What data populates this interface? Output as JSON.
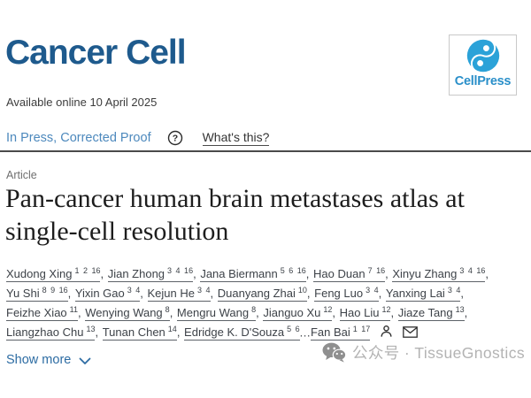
{
  "header": {
    "journal": "Cancer Cell",
    "logo_text": "CellPress"
  },
  "meta": {
    "available_online": "Available online 10 April 2025"
  },
  "status": {
    "label": "In Press, Corrected Proof",
    "help_glyph": "?",
    "whats_this": "What's this?"
  },
  "article": {
    "label": "Article",
    "title": "Pan-cancer human brain metastases atlas at single-cell resolution",
    "title_lines": [
      "Pan-cancer human brain metastases atlas at",
      "single-cell resolution"
    ]
  },
  "authors": {
    "lines": [
      [
        {
          "name": "Xudong Xing",
          "sup": "1 2 16",
          "sep": ", "
        },
        {
          "name": "Jian Zhong",
          "sup": "3 4 16",
          "sep": ", "
        },
        {
          "name": "Jana Biermann",
          "sup": "5 6 16",
          "sep": ", "
        },
        {
          "name": "Hao Duan",
          "sup": "7 16",
          "sep": ", "
        },
        {
          "name": "Xinyu Zhang",
          "sup": "3 4 16",
          "sep": ","
        }
      ],
      [
        {
          "name": "Yu Shi",
          "sup": "8 9 16",
          "sep": ", "
        },
        {
          "name": "Yixin Gao",
          "sup": "3 4",
          "sep": ", "
        },
        {
          "name": "Kejun He",
          "sup": "3 4",
          "sep": ", "
        },
        {
          "name": "Duanyang Zhai",
          "sup": "10",
          "sep": ", "
        },
        {
          "name": "Feng Luo",
          "sup": "3 4",
          "sep": ", "
        },
        {
          "name": "Yanxing Lai",
          "sup": "3 4",
          "sep": ","
        }
      ],
      [
        {
          "name": "Feizhe Xiao",
          "sup": "11",
          "sep": ", "
        },
        {
          "name": "Wenying Wang",
          "sup": "8",
          "sep": ", "
        },
        {
          "name": "Mengru Wang",
          "sup": "8",
          "sep": ", "
        },
        {
          "name": "Jianguo Xu",
          "sup": "12",
          "sep": ", "
        },
        {
          "name": "Hao Liu",
          "sup": "12",
          "sep": ", "
        },
        {
          "name": "Jiaze Tang",
          "sup": "13",
          "sep": ","
        }
      ],
      [
        {
          "name": "Liangzhao Chu",
          "sup": "13",
          "sep": ", "
        },
        {
          "name": "Tunan Chen",
          "sup": "14",
          "sep": ", "
        },
        {
          "name": "Edridge K. D'Souza",
          "sup": "5 6",
          "sep": ""
        },
        {
          "text": "..."
        },
        {
          "name": "Fan Bai",
          "sup": "1 17",
          "sep": ""
        },
        {
          "icon": "person-icon"
        },
        {
          "icon": "mail-icon"
        }
      ]
    ]
  },
  "show_more": {
    "label": "Show more"
  },
  "watermark": {
    "icon": "wechat-icon",
    "text": "公众号 · TissueGnostics"
  },
  "colors": {
    "journal_blue": "#1e5a8d",
    "logo_blue": "#2ba2d8",
    "logo_text_blue": "#2a8fc9",
    "status_blue": "#4d89bd",
    "link_blue": "#2d6ca3",
    "watermark_gray": "#b3b3b3"
  }
}
